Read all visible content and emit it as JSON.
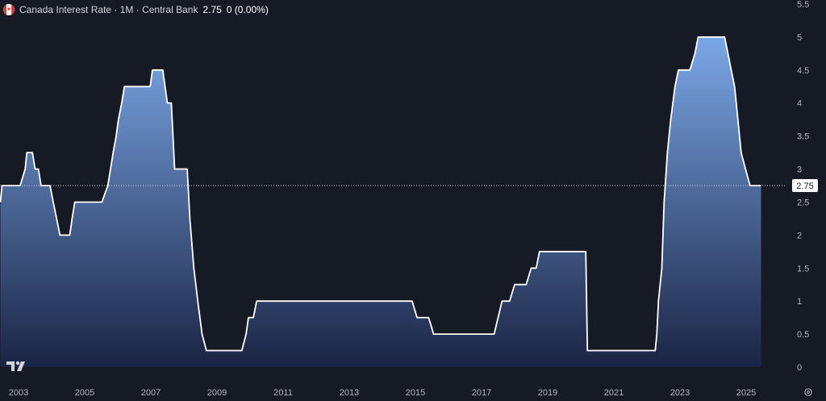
{
  "header": {
    "title": "Canada Interest Rate · 1M · Central Bank",
    "value": "2.75",
    "change": "0 (0.00%)"
  },
  "colors": {
    "background": "#161a25",
    "line": "#ffffff",
    "area_top": "#7ba7e6",
    "area_bottom": "#1a2444",
    "axis_text": "#b2b5be"
  },
  "icons": {
    "flag": "canada-flag-icon",
    "logo": "tradingview-logo-icon",
    "settings": "gear-icon"
  },
  "chart_data": {
    "type": "area",
    "title": "Canada Interest Rate · 1M · Central Bank",
    "xlabel": "",
    "ylabel": "",
    "ylim": [
      0,
      5.5
    ],
    "y_ticks": [
      0,
      0.5,
      1,
      1.5,
      2,
      2.5,
      3,
      3.5,
      4,
      4.5,
      5,
      5.5
    ],
    "y_tick_labels": [
      "0",
      "0.5",
      "1",
      "1.5",
      "2",
      "2.5",
      "3",
      "3.5",
      "4",
      "4.5",
      "5",
      "5.5"
    ],
    "x_tick_labels": [
      "2003",
      "2005",
      "2007",
      "2009",
      "2011",
      "2013",
      "2015",
      "2017",
      "2019",
      "2021",
      "2023",
      "2025"
    ],
    "x_ticks": [
      2003,
      2005,
      2007,
      2009,
      2011,
      2013,
      2015,
      2017,
      2019,
      2021,
      2023,
      2025
    ],
    "xlim": [
      2002.45,
      2025.65
    ],
    "last_value": 2.75,
    "last_value_label": "2.75",
    "grid": false,
    "series": [
      {
        "points": [
          [
            2002.45,
            2.5
          ],
          [
            2002.5,
            2.75
          ],
          [
            2003.05,
            2.75
          ],
          [
            2003.2,
            3.0
          ],
          [
            2003.25,
            3.25
          ],
          [
            2003.42,
            3.25
          ],
          [
            2003.5,
            3.0
          ],
          [
            2003.6,
            3.0
          ],
          [
            2003.68,
            2.75
          ],
          [
            2003.95,
            2.75
          ],
          [
            2004.05,
            2.5
          ],
          [
            2004.15,
            2.25
          ],
          [
            2004.25,
            2.0
          ],
          [
            2004.55,
            2.0
          ],
          [
            2004.62,
            2.25
          ],
          [
            2004.7,
            2.5
          ],
          [
            2005.52,
            2.5
          ],
          [
            2005.7,
            2.75
          ],
          [
            2005.78,
            3.0
          ],
          [
            2005.86,
            3.25
          ],
          [
            2005.95,
            3.5
          ],
          [
            2006.02,
            3.75
          ],
          [
            2006.12,
            4.0
          ],
          [
            2006.2,
            4.25
          ],
          [
            2006.85,
            4.25
          ],
          [
            2006.98,
            4.25
          ],
          [
            2007.05,
            4.5
          ],
          [
            2007.36,
            4.5
          ],
          [
            2007.5,
            4.0
          ],
          [
            2007.62,
            4.0
          ],
          [
            2007.72,
            3.0
          ],
          [
            2008.1,
            3.0
          ],
          [
            2008.18,
            2.25
          ],
          [
            2008.3,
            1.5
          ],
          [
            2008.42,
            1.0
          ],
          [
            2008.55,
            0.5
          ],
          [
            2008.68,
            0.25
          ],
          [
            2009.75,
            0.25
          ],
          [
            2009.88,
            0.5
          ],
          [
            2009.95,
            0.75
          ],
          [
            2010.1,
            0.75
          ],
          [
            2010.2,
            1.0
          ],
          [
            2014.9,
            1.0
          ],
          [
            2015.05,
            0.75
          ],
          [
            2015.4,
            0.75
          ],
          [
            2015.55,
            0.5
          ],
          [
            2017.38,
            0.5
          ],
          [
            2017.5,
            0.75
          ],
          [
            2017.62,
            1.0
          ],
          [
            2017.85,
            1.0
          ],
          [
            2018.0,
            1.25
          ],
          [
            2018.35,
            1.25
          ],
          [
            2018.5,
            1.5
          ],
          [
            2018.65,
            1.5
          ],
          [
            2018.75,
            1.75
          ],
          [
            2020.15,
            1.75
          ],
          [
            2020.2,
            0.25
          ],
          [
            2022.25,
            0.25
          ],
          [
            2022.3,
            0.5
          ],
          [
            2022.35,
            1.0
          ],
          [
            2022.45,
            1.5
          ],
          [
            2022.52,
            2.5
          ],
          [
            2022.62,
            3.25
          ],
          [
            2022.72,
            3.75
          ],
          [
            2022.85,
            4.25
          ],
          [
            2022.95,
            4.5
          ],
          [
            2023.3,
            4.5
          ],
          [
            2023.45,
            4.75
          ],
          [
            2023.55,
            5.0
          ],
          [
            2024.35,
            5.0
          ],
          [
            2024.45,
            4.75
          ],
          [
            2024.55,
            4.5
          ],
          [
            2024.65,
            4.25
          ],
          [
            2024.75,
            3.75
          ],
          [
            2024.85,
            3.25
          ],
          [
            2024.98,
            3.0
          ],
          [
            2025.12,
            2.75
          ],
          [
            2025.45,
            2.75
          ]
        ]
      }
    ]
  }
}
